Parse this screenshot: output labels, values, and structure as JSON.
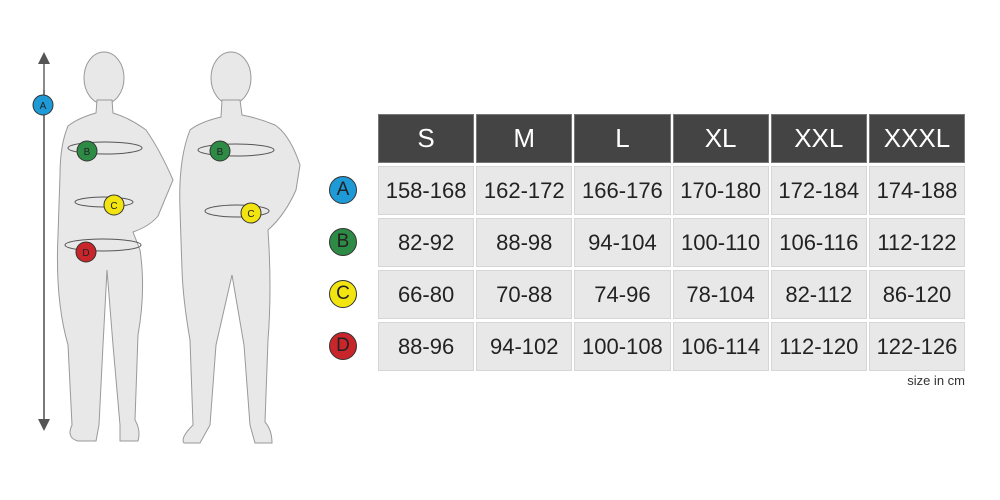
{
  "sizes": [
    "S",
    "M",
    "L",
    "XL",
    "XXL",
    "XXXL"
  ],
  "rows": [
    {
      "label": "A",
      "color": "#1e9ad6",
      "values": [
        "158-168",
        "162-172",
        "166-176",
        "170-180",
        "172-184",
        "174-188"
      ]
    },
    {
      "label": "B",
      "color": "#2e8b45",
      "values": [
        "82-92",
        "88-98",
        "94-104",
        "100-110",
        "106-116",
        "112-122"
      ]
    },
    {
      "label": "C",
      "color": "#f2e410",
      "values": [
        "66-80",
        "70-88",
        "74-96",
        "78-104",
        "82-112",
        "86-120"
      ]
    },
    {
      "label": "D",
      "color": "#c8262b",
      "values": [
        "88-96",
        "94-102",
        "100-108",
        "106-114",
        "112-120",
        "122-126"
      ]
    }
  ],
  "unit_note": "size in cm"
}
